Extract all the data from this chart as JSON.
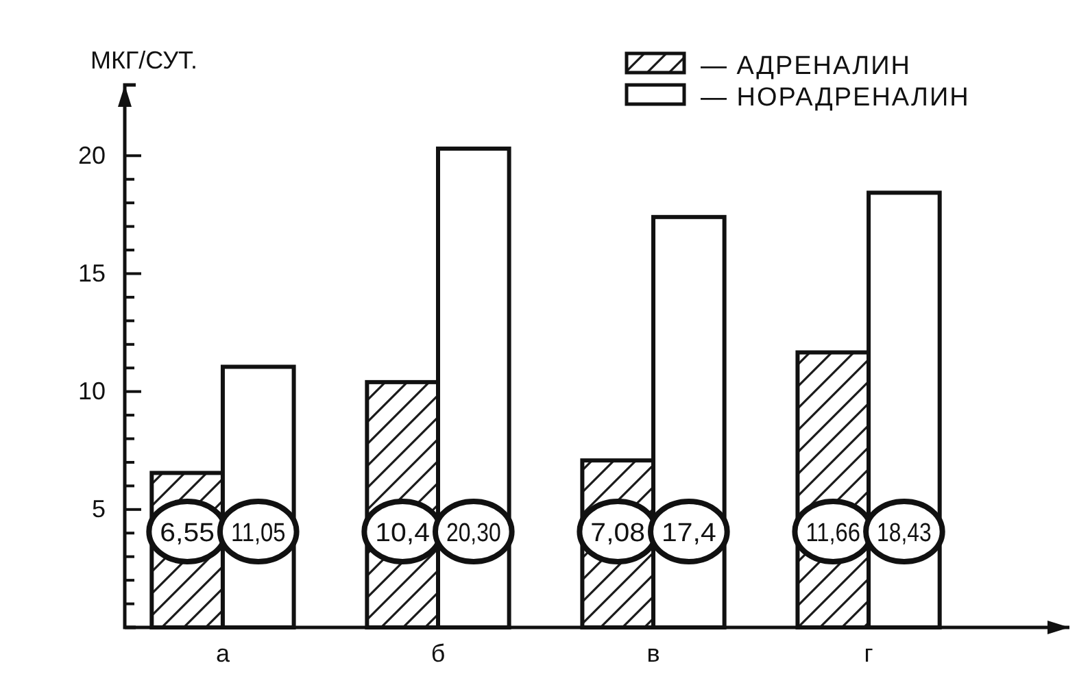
{
  "chart_data": {
    "type": "bar",
    "ylabel": "МКГ/СУТ.",
    "categories": [
      "а",
      "б",
      "в",
      "г"
    ],
    "series": [
      {
        "name": "— АДРЕНАЛИН",
        "color": "#1a1a1a",
        "values": [
          6.55,
          10.4,
          7.08,
          11.66
        ],
        "value_labels": [
          "6,55",
          "10,4",
          "7,08",
          "11,66"
        ]
      },
      {
        "name": "— НОРАДРЕНАЛИН",
        "color": "#ffffff",
        "values": [
          11.05,
          20.3,
          17.4,
          18.43
        ],
        "value_labels": [
          "11,05",
          "20,30",
          "17,4",
          "18,43"
        ]
      }
    ],
    "ylim": [
      0,
      23
    ],
    "yticks": [
      {
        "value": 1,
        "label": null
      },
      {
        "value": 2,
        "label": null
      },
      {
        "value": 3,
        "label": null
      },
      {
        "value": 4,
        "label": null
      },
      5,
      {
        "value": 6,
        "label": null
      },
      {
        "value": 7,
        "label": null
      },
      {
        "value": 8,
        "label": null
      },
      {
        "value": 9,
        "label": null
      },
      10,
      {
        "value": 11,
        "label": null
      },
      {
        "value": 12,
        "label": null
      },
      {
        "value": 13,
        "label": null
      },
      {
        "value": 14,
        "label": null
      },
      15,
      {
        "value": 16,
        "label": null
      },
      {
        "value": 17,
        "label": null
      },
      {
        "value": 18,
        "label": null
      },
      {
        "value": 19,
        "label": null
      },
      20
    ],
    "legend": "top right",
    "grid": false
  }
}
